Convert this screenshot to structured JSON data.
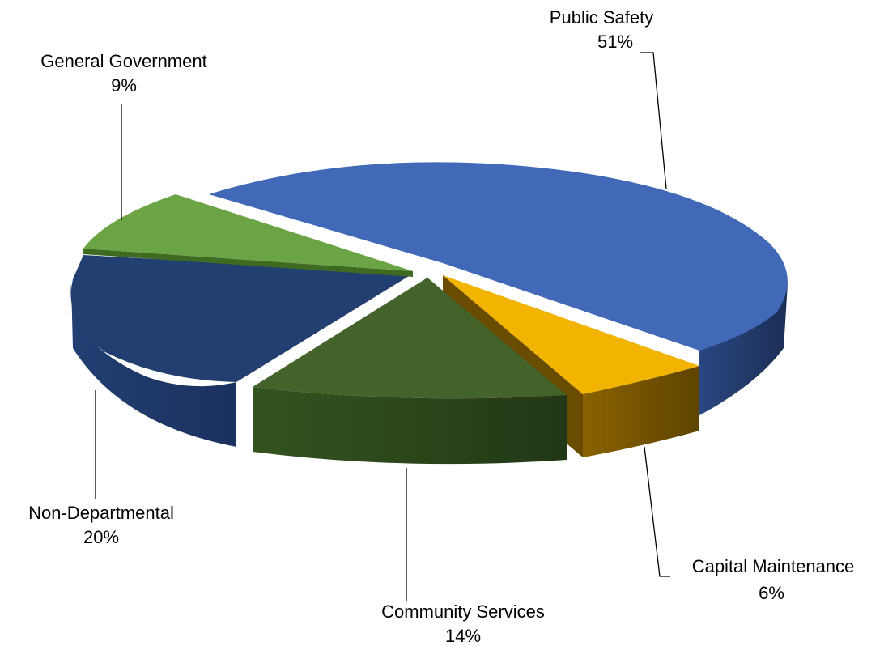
{
  "chart_data": {
    "type": "pie",
    "style": "3d-exploded",
    "title": "",
    "slices": [
      {
        "label": "Public Safety",
        "percent_label": "51%",
        "value": 51,
        "color": "#4169B8",
        "side_color": "#1F3560"
      },
      {
        "label": "Capital Maintenance",
        "percent_label": "6%",
        "value": 6,
        "color": "#F2B400",
        "side_color": "#7A5800"
      },
      {
        "label": "Community Services",
        "percent_label": "14%",
        "value": 14,
        "color": "#43632A",
        "side_color": "#2A4318"
      },
      {
        "label": "Non-Departmental",
        "percent_label": "20%",
        "value": 20,
        "color": "#233E70",
        "side_color": "#1A305A"
      },
      {
        "label": "General Government",
        "percent_label": "9%",
        "value": 9,
        "color": "#6AA444",
        "side_color": "#3E6A22"
      }
    ],
    "legend": "none",
    "data_labels": "outside-with-leader-lines"
  }
}
